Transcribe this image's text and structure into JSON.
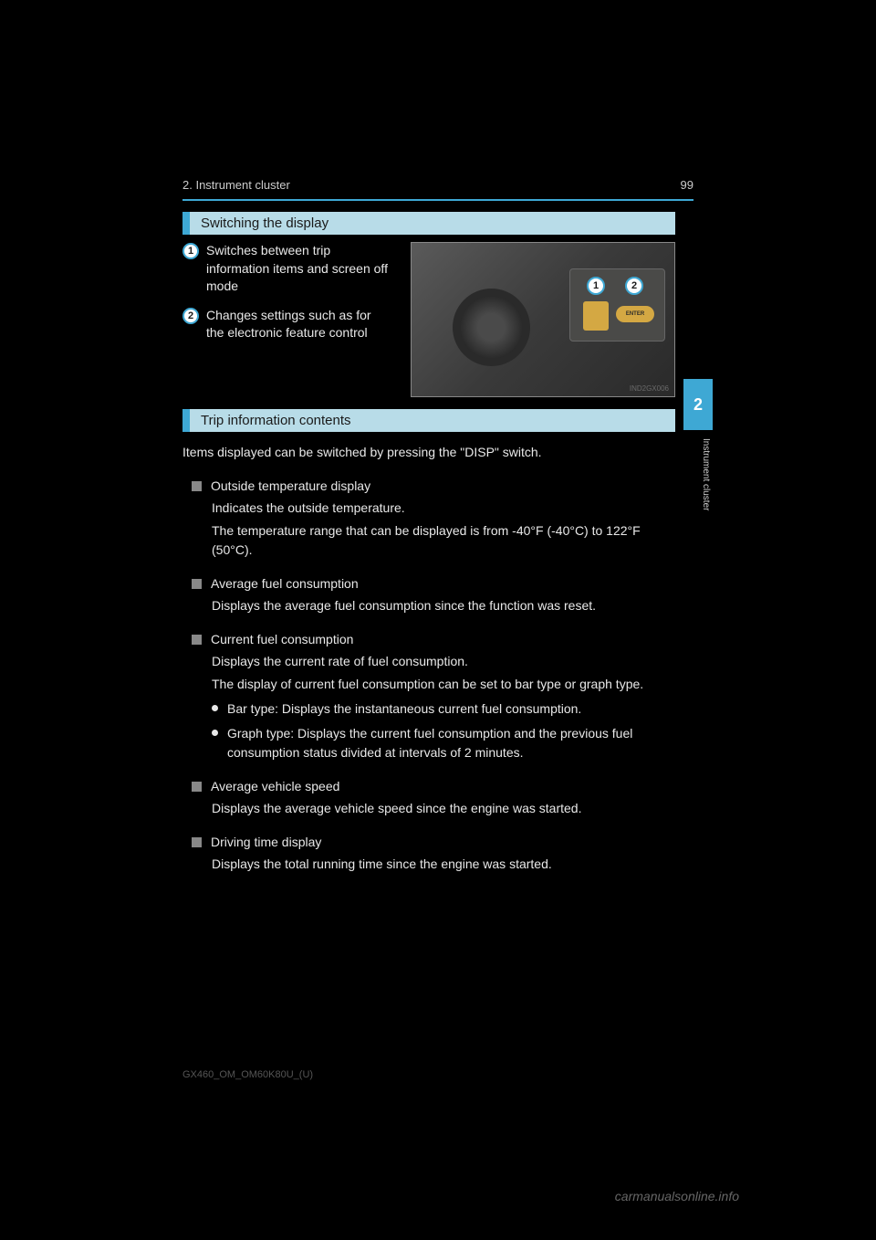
{
  "header": {
    "breadcrumb": "2. Instrument cluster",
    "pageNumber": "99"
  },
  "sideTab": {
    "chapterNumber": "2",
    "chapterLabel": "Instrument cluster"
  },
  "section1": {
    "title": "Switching the display",
    "callouts": [
      {
        "num": "1",
        "text": "Switches between trip information items and screen off mode"
      },
      {
        "num": "2",
        "text": "Changes settings such as for the electronic feature control"
      }
    ],
    "image": {
      "btnLabel": "ENTER",
      "code": "IND2GX006"
    }
  },
  "section2": {
    "title": "Trip information contents",
    "intro": "Items displayed can be switched by pressing the \"DISP\" switch.",
    "subsections": [
      {
        "title": "Outside temperature display",
        "body": [
          "Indicates the outside temperature.",
          "The temperature range that can be displayed is from -40°F (-40°C) to 122°F (50°C)."
        ]
      },
      {
        "title": "Average fuel consumption",
        "body": [
          "Displays the average fuel consumption since the function was reset."
        ]
      },
      {
        "title": "Current fuel consumption",
        "body": [
          "Displays the current rate of fuel consumption.",
          "The display of current fuel consumption can be set to bar type or graph type."
        ],
        "bullets": [
          "Bar type: Displays the instantaneous current fuel consumption.",
          "Graph type: Displays the current fuel consumption and the previous fuel consumption status divided at intervals of 2 minutes."
        ]
      },
      {
        "title": "Average vehicle speed",
        "body": [
          "Displays the average vehicle speed since the engine was started."
        ]
      },
      {
        "title": "Driving time display",
        "body": [
          "Displays the total running time since the engine was started."
        ]
      }
    ]
  },
  "footer": {
    "docCode": "GX460_OM_OM60K80U_(U)",
    "watermark": "carmanualsonline.info"
  },
  "colors": {
    "background": "#000000",
    "accent": "#3ea8d4",
    "sectionBg": "#b8dce8",
    "text": "#e8e8e8",
    "subBullet": "#888888"
  }
}
